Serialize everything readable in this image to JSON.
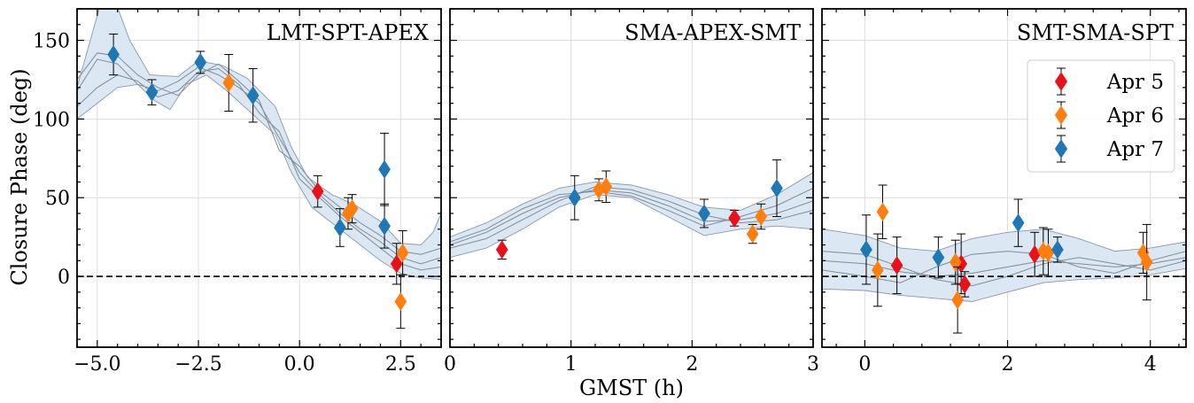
{
  "chart_data": {
    "type": "scatter",
    "ylabel": "Closure Phase (deg)",
    "xlabel": "GMST (h)",
    "ylim": [
      -45,
      170
    ],
    "yticks": [
      0,
      50,
      100,
      150
    ],
    "legend": {
      "placement": "top-right of third panel",
      "entries": [
        {
          "label": "Apr 5",
          "color": "#e8111a"
        },
        {
          "label": "Apr 6",
          "color": "#ff7f0e"
        },
        {
          "label": "Apr 7",
          "color": "#1f77b4"
        }
      ]
    },
    "zero_line": true,
    "grid": true,
    "panels": [
      {
        "title": "LMT-SPT-APEX",
        "xlim": [
          -5.5,
          3.5
        ],
        "xticks": [
          -5.0,
          -2.5,
          0.0,
          2.5
        ],
        "xtick_labels": [
          "−5.0",
          "−2.5",
          "0.0",
          "2.5"
        ],
        "series": [
          {
            "points": [
              [
                0.45,
                54,
                10
              ],
              [
                2.4,
                8,
                13
              ]
            ]
          },
          {
            "points": [
              [
                -1.75,
                123,
                18
              ],
              [
                1.2,
                40,
                10
              ],
              [
                1.3,
                43,
                9
              ],
              [
                2.5,
                -16,
                17
              ],
              [
                2.55,
                15,
                14
              ]
            ]
          },
          {
            "points": [
              [
                -4.6,
                141,
                13
              ],
              [
                -3.65,
                117,
                8
              ],
              [
                -2.45,
                136,
                7
              ],
              [
                -1.15,
                115,
                17
              ],
              [
                1.0,
                31,
                12
              ],
              [
                2.1,
                68,
                23
              ],
              [
                2.1,
                32,
                14
              ]
            ]
          }
        ],
        "band_upper": [
          [
            -5.5,
            120
          ],
          [
            -4.9,
            175
          ],
          [
            -4.6,
            178
          ],
          [
            -4.2,
            150
          ],
          [
            -3.7,
            128
          ],
          [
            -3.0,
            127
          ],
          [
            -2.5,
            137
          ],
          [
            -1.9,
            134
          ],
          [
            -1.3,
            126
          ],
          [
            -0.6,
            108
          ],
          [
            -0.2,
            82
          ],
          [
            0.2,
            63
          ],
          [
            0.8,
            52
          ],
          [
            1.4,
            45
          ],
          [
            2.0,
            35
          ],
          [
            2.5,
            21
          ],
          [
            3.0,
            20
          ],
          [
            3.3,
            28
          ],
          [
            3.5,
            40
          ]
        ],
        "band_lower": [
          [
            -5.5,
            100
          ],
          [
            -5.0,
            110
          ],
          [
            -4.5,
            120
          ],
          [
            -4.0,
            122
          ],
          [
            -3.6,
            112
          ],
          [
            -3.2,
            106
          ],
          [
            -2.8,
            122
          ],
          [
            -2.3,
            128
          ],
          [
            -1.8,
            118
          ],
          [
            -1.2,
            104
          ],
          [
            -0.6,
            90
          ],
          [
            -0.2,
            66
          ],
          [
            0.3,
            44
          ],
          [
            0.9,
            32
          ],
          [
            1.5,
            20
          ],
          [
            2.0,
            10
          ],
          [
            2.5,
            2
          ],
          [
            3.0,
            -1
          ],
          [
            3.5,
            -2
          ]
        ],
        "samples": [
          [
            [
              -5.5,
              118
            ],
            [
              -5.0,
              138
            ],
            [
              -4.5,
              135
            ],
            [
              -4.0,
              122
            ],
            [
              -3.5,
              118
            ],
            [
              -3.0,
              124
            ],
            [
              -2.5,
              133
            ],
            [
              -2.0,
              128
            ],
            [
              -1.5,
              120
            ],
            [
              -1.0,
              110
            ],
            [
              -0.5,
              88
            ],
            [
              0.0,
              66
            ],
            [
              0.5,
              52
            ],
            [
              1.0,
              40
            ],
            [
              1.5,
              30
            ],
            [
              2.0,
              22
            ],
            [
              2.5,
              12
            ],
            [
              3.0,
              8
            ],
            [
              3.5,
              12
            ]
          ],
          [
            [
              -5.5,
              108
            ],
            [
              -5.0,
              120
            ],
            [
              -4.5,
              128
            ],
            [
              -4.0,
              124
            ],
            [
              -3.5,
              114
            ],
            [
              -3.0,
              118
            ],
            [
              -2.5,
              130
            ],
            [
              -2.0,
              132
            ],
            [
              -1.5,
              122
            ],
            [
              -1.0,
              104
            ],
            [
              -0.5,
              92
            ],
            [
              0.0,
              62
            ],
            [
              0.5,
              50
            ],
            [
              1.0,
              38
            ],
            [
              1.5,
              28
            ],
            [
              2.0,
              18
            ],
            [
              2.5,
              8
            ],
            [
              3.0,
              4
            ],
            [
              3.5,
              6
            ]
          ],
          [
            [
              -5.5,
              125
            ],
            [
              -5.0,
              142
            ],
            [
              -4.5,
              140
            ],
            [
              -4.0,
              128
            ],
            [
              -3.5,
              120
            ],
            [
              -3.0,
              115
            ],
            [
              -2.5,
              128
            ],
            [
              -2.0,
              135
            ],
            [
              -1.5,
              124
            ],
            [
              -1.0,
              112
            ],
            [
              -0.5,
              80
            ],
            [
              0.0,
              70
            ],
            [
              0.5,
              54
            ],
            [
              1.0,
              44
            ],
            [
              1.5,
              34
            ],
            [
              2.0,
              26
            ],
            [
              2.5,
              16
            ],
            [
              3.0,
              14
            ],
            [
              3.5,
              18
            ]
          ]
        ]
      },
      {
        "title": "SMA-APEX-SMT",
        "xlim": [
          0,
          3
        ],
        "xticks": [
          0,
          1,
          2,
          3
        ],
        "xtick_labels": [
          "0",
          "1",
          "2",
          "3"
        ],
        "series": [
          {
            "points": [
              [
                0.43,
                17,
                6
              ],
              [
                2.35,
                37,
                5
              ]
            ]
          },
          {
            "points": [
              [
                1.23,
                55,
                7
              ],
              [
                1.29,
                57,
                10
              ],
              [
                2.5,
                27,
                6
              ],
              [
                2.57,
                38,
                8
              ]
            ]
          },
          {
            "points": [
              [
                1.03,
                50,
                14
              ],
              [
                2.1,
                40,
                9
              ],
              [
                2.7,
                56,
                18
              ]
            ]
          }
        ],
        "band_upper": [
          [
            0,
            25
          ],
          [
            0.3,
            34
          ],
          [
            0.6,
            46
          ],
          [
            0.9,
            56
          ],
          [
            1.2,
            60
          ],
          [
            1.5,
            58
          ],
          [
            1.8,
            52
          ],
          [
            2.1,
            44
          ],
          [
            2.4,
            42
          ],
          [
            2.7,
            52
          ],
          [
            3.0,
            66
          ]
        ],
        "band_lower": [
          [
            0,
            12
          ],
          [
            0.3,
            18
          ],
          [
            0.6,
            30
          ],
          [
            0.9,
            44
          ],
          [
            1.2,
            52
          ],
          [
            1.5,
            50
          ],
          [
            1.8,
            38
          ],
          [
            2.1,
            26
          ],
          [
            2.4,
            30
          ],
          [
            2.7,
            32
          ],
          [
            3.0,
            30
          ]
        ],
        "samples": [
          [
            [
              0,
              20
            ],
            [
              0.3,
              28
            ],
            [
              0.6,
              40
            ],
            [
              0.9,
              50
            ],
            [
              1.2,
              55
            ],
            [
              1.5,
              53
            ],
            [
              1.8,
              45
            ],
            [
              2.1,
              35
            ],
            [
              2.4,
              36
            ],
            [
              2.7,
              40
            ],
            [
              3.0,
              48
            ]
          ],
          [
            [
              0,
              18
            ],
            [
              0.3,
              24
            ],
            [
              0.6,
              36
            ],
            [
              0.9,
              48
            ],
            [
              1.2,
              57
            ],
            [
              1.5,
              55
            ],
            [
              1.8,
              48
            ],
            [
              2.1,
              39
            ],
            [
              2.4,
              34
            ],
            [
              2.7,
              36
            ],
            [
              3.0,
              42
            ]
          ],
          [
            [
              0,
              22
            ],
            [
              0.3,
              30
            ],
            [
              0.6,
              43
            ],
            [
              0.9,
              52
            ],
            [
              1.2,
              54
            ],
            [
              1.5,
              51
            ],
            [
              1.8,
              42
            ],
            [
              2.1,
              32
            ],
            [
              2.4,
              38
            ],
            [
              2.7,
              45
            ],
            [
              3.0,
              56
            ]
          ]
        ]
      },
      {
        "title": "SMT-SMA-SPT",
        "xlim": [
          -0.6,
          4.5
        ],
        "xticks": [
          0,
          2,
          4
        ],
        "xtick_labels": [
          "0",
          "2",
          "4"
        ],
        "series": [
          {
            "points": [
              [
                0.45,
                7,
                18
              ],
              [
                1.35,
                8,
                19
              ],
              [
                1.4,
                -5,
                8
              ],
              [
                2.38,
                14,
                14
              ]
            ]
          },
          {
            "points": [
              [
                0.18,
                4,
                23
              ],
              [
                0.25,
                41,
                17
              ],
              [
                1.27,
                9,
                14
              ],
              [
                1.3,
                -15,
                21
              ],
              [
                2.5,
                16,
                15
              ],
              [
                2.57,
                15,
                15
              ],
              [
                3.9,
                15,
                13
              ],
              [
                3.95,
                9,
                24
              ]
            ]
          },
          {
            "points": [
              [
                0.02,
                17,
                22
              ],
              [
                1.03,
                12,
                13
              ],
              [
                2.15,
                34,
                15
              ],
              [
                2.7,
                17,
                8
              ]
            ]
          }
        ],
        "band_upper": [
          [
            -0.6,
            30
          ],
          [
            0,
            26
          ],
          [
            0.5,
            18
          ],
          [
            1.0,
            16
          ],
          [
            1.5,
            24
          ],
          [
            2.0,
            28
          ],
          [
            2.5,
            30
          ],
          [
            3.0,
            24
          ],
          [
            3.5,
            16
          ],
          [
            4.0,
            18
          ],
          [
            4.5,
            22
          ]
        ],
        "band_lower": [
          [
            -0.6,
            -8
          ],
          [
            0,
            -9
          ],
          [
            0.5,
            -12
          ],
          [
            1.0,
            -14
          ],
          [
            1.5,
            -16
          ],
          [
            2.0,
            -10
          ],
          [
            2.5,
            -4
          ],
          [
            3.0,
            -2
          ],
          [
            3.5,
            -1
          ],
          [
            4.0,
            1
          ],
          [
            4.5,
            5
          ]
        ],
        "samples": [
          [
            [
              -0.6,
              10
            ],
            [
              0,
              8
            ],
            [
              0.5,
              3
            ],
            [
              1.0,
              0
            ],
            [
              1.5,
              2
            ],
            [
              2.0,
              6
            ],
            [
              2.5,
              10
            ],
            [
              3.0,
              8
            ],
            [
              3.5,
              6
            ],
            [
              4.0,
              8
            ],
            [
              4.5,
              12
            ]
          ],
          [
            [
              -0.6,
              16
            ],
            [
              0,
              14
            ],
            [
              0.5,
              6
            ],
            [
              1.0,
              -2
            ],
            [
              1.5,
              -6
            ],
            [
              2.0,
              0
            ],
            [
              2.5,
              8
            ],
            [
              3.0,
              12
            ],
            [
              3.5,
              8
            ],
            [
              4.0,
              4
            ],
            [
              4.5,
              10
            ]
          ],
          [
            [
              -0.6,
              4
            ],
            [
              0,
              0
            ],
            [
              0.5,
              -4
            ],
            [
              1.0,
              6
            ],
            [
              1.5,
              14
            ],
            [
              2.0,
              16
            ],
            [
              2.5,
              14
            ],
            [
              3.0,
              6
            ],
            [
              3.5,
              2
            ],
            [
              4.0,
              10
            ],
            [
              4.5,
              16
            ]
          ]
        ]
      }
    ]
  }
}
